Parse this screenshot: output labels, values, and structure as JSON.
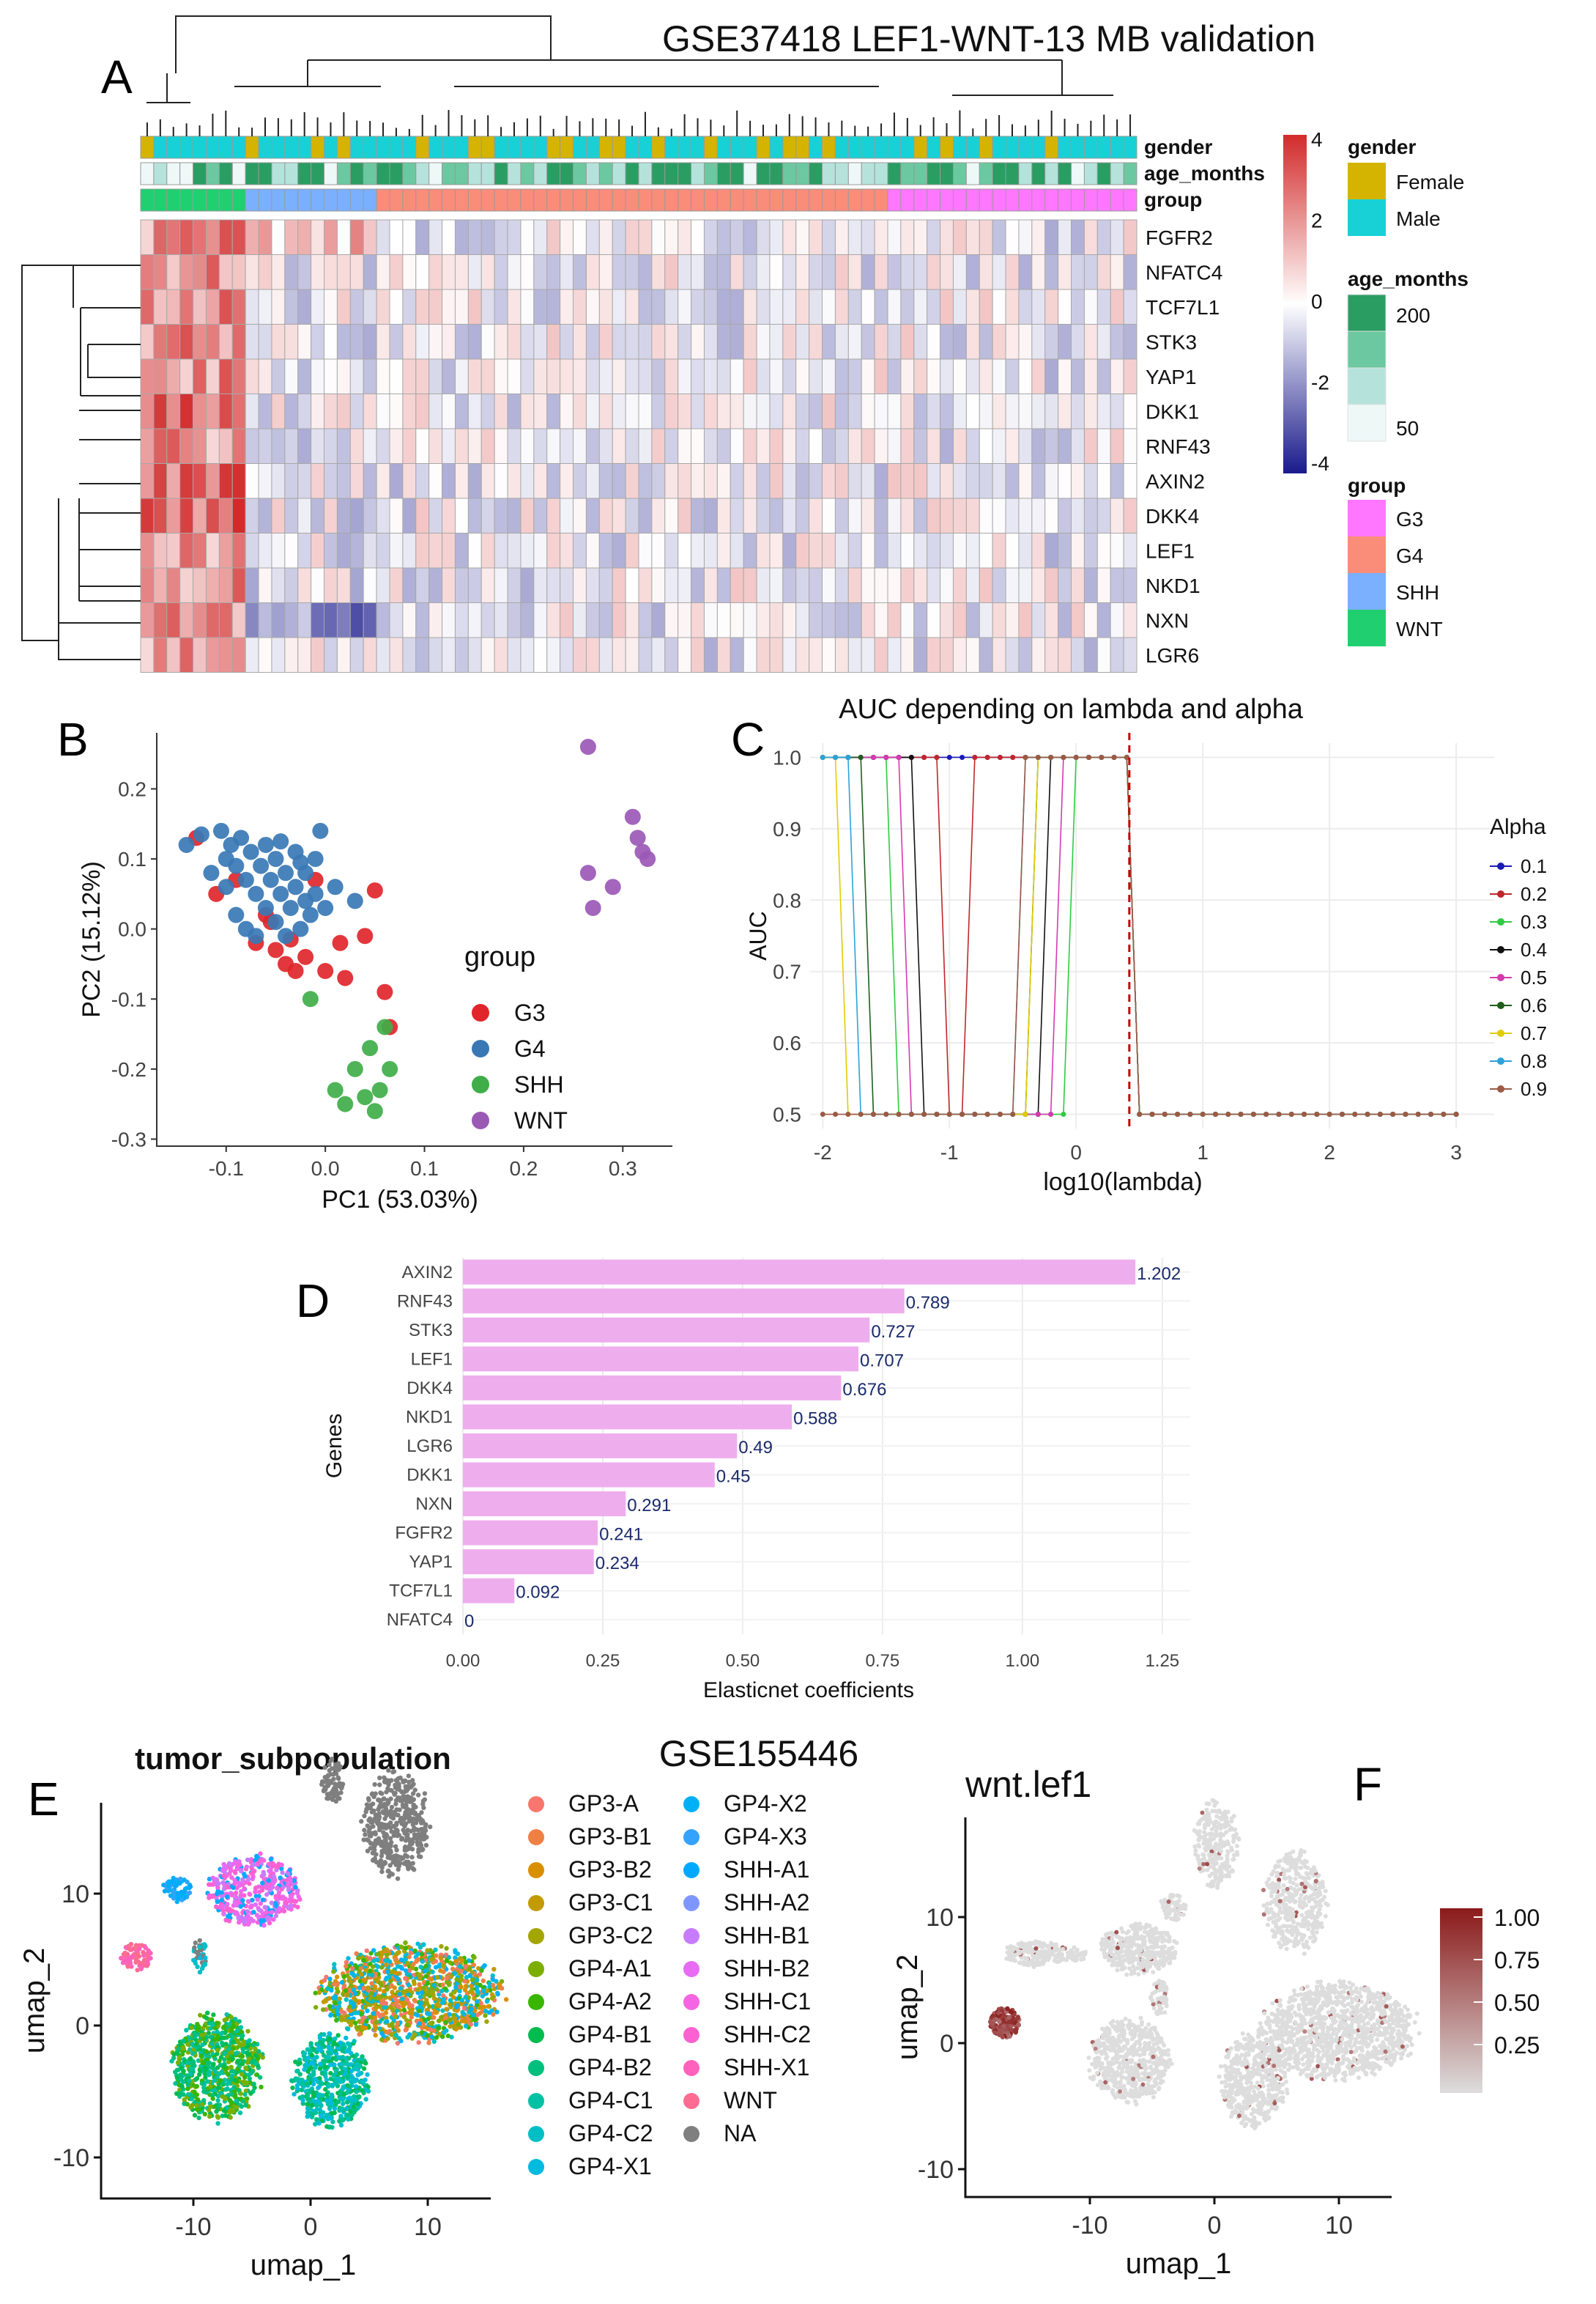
{
  "figure": {
    "panel_labels": [
      "A",
      "B",
      "C",
      "D",
      "E",
      "F"
    ]
  },
  "chart_data": [
    {
      "panel": "A",
      "type": "heatmap",
      "title": "GSE37418 LEF1-WNT-13 MB validation",
      "rows": [
        "FGFR2",
        "NFATC4",
        "TCF7L1",
        "STK3",
        "YAP1",
        "DKK1",
        "RNF43",
        "AXIN2",
        "DKK4",
        "LEF1",
        "NKD1",
        "NXN",
        "LGR6"
      ],
      "annotation_tracks": [
        "gender",
        "age_months",
        "group"
      ],
      "n_samples": 76,
      "sample_groups": [
        {
          "group": "WNT",
          "count": 8
        },
        {
          "group": "SHH",
          "count": 10
        },
        {
          "group": "G4",
          "count": 39
        },
        {
          "group": "G3",
          "count": 19
        }
      ],
      "scale_legend": {
        "ticks": [
          "4",
          "2",
          "0",
          "-2",
          "-4"
        ],
        "low": "#1a1a8c",
        "mid": "#ffffff",
        "high": "#d22b2b"
      },
      "legends": {
        "gender": {
          "title": "gender",
          "items": [
            {
              "label": "Female",
              "color": "#d4b400"
            },
            {
              "label": "Male",
              "color": "#17d1d6"
            }
          ]
        },
        "age_months": {
          "title": "age_months",
          "labels": [
            "200",
            "50"
          ],
          "colors": [
            "#2a9d63",
            "#6cc8a0",
            "#b5e3dc",
            "#edf8f7"
          ]
        },
        "group": {
          "title": "group",
          "items": [
            {
              "label": "G3",
              "color": "#ff77ff"
            },
            {
              "label": "G4",
              "color": "#fa8c7a"
            },
            {
              "label": "SHH",
              "color": "#7ab0ff"
            },
            {
              "label": "WNT",
              "color": "#20d070"
            }
          ]
        }
      }
    },
    {
      "panel": "B",
      "type": "scatter",
      "xlabel": "PC1 (53.03%)",
      "ylabel": "PC2 (15.12%)",
      "xlim": [
        -0.17,
        0.35
      ],
      "ylim": [
        -0.31,
        0.28
      ],
      "xticks": [
        -0.1,
        0.0,
        0.1,
        0.2,
        0.3
      ],
      "xtick_labels": [
        "-0.1",
        "0.0",
        "0.1",
        "0.2",
        "0.3"
      ],
      "yticks": [
        -0.3,
        -0.2,
        -0.1,
        0.0,
        0.1,
        0.2
      ],
      "ytick_labels": [
        "-0.3",
        "-0.2",
        "-0.1",
        "0.0",
        "0.1",
        "0.2"
      ],
      "legend_title": "group",
      "series": [
        {
          "name": "G3",
          "color": "#e0262b",
          "points": [
            [
              -0.13,
              0.13
            ],
            [
              -0.11,
              0.05
            ],
            [
              -0.09,
              0.07
            ],
            [
              -0.06,
              0.02
            ],
            [
              -0.05,
              -0.03
            ],
            [
              -0.04,
              -0.05
            ],
            [
              -0.03,
              -0.06
            ],
            [
              -0.02,
              -0.04
            ],
            [
              -0.01,
              0.07
            ],
            [
              0.0,
              -0.06
            ],
            [
              0.02,
              -0.07
            ],
            [
              0.05,
              0.055
            ],
            [
              0.04,
              -0.01
            ],
            [
              0.06,
              -0.09
            ],
            [
              0.065,
              -0.14
            ],
            [
              -0.07,
              -0.02
            ],
            [
              -0.055,
              0.01
            ],
            [
              -0.035,
              -0.015
            ],
            [
              0.015,
              -0.02
            ]
          ]
        },
        {
          "name": "G4",
          "color": "#3a78b5",
          "points": [
            [
              -0.14,
              0.12
            ],
            [
              -0.125,
              0.135
            ],
            [
              -0.105,
              0.14
            ],
            [
              -0.1,
              0.1
            ],
            [
              -0.095,
              0.12
            ],
            [
              -0.09,
              0.09
            ],
            [
              -0.085,
              0.13
            ],
            [
              -0.08,
              0.07
            ],
            [
              -0.075,
              0.11
            ],
            [
              -0.07,
              0.05
            ],
            [
              -0.065,
              0.09
            ],
            [
              -0.06,
              0.12
            ],
            [
              -0.06,
              0.03
            ],
            [
              -0.055,
              0.07
            ],
            [
              -0.05,
              0.1
            ],
            [
              -0.05,
              0.01
            ],
            [
              -0.045,
              0.05
            ],
            [
              -0.04,
              0.08
            ],
            [
              -0.04,
              -0.01
            ],
            [
              -0.035,
              0.03
            ],
            [
              -0.03,
              0.06
            ],
            [
              -0.03,
              0.11
            ],
            [
              -0.025,
              0.0
            ],
            [
              -0.02,
              0.04
            ],
            [
              -0.02,
              0.08
            ],
            [
              -0.015,
              0.02
            ],
            [
              -0.01,
              0.05
            ],
            [
              -0.01,
              0.1
            ],
            [
              -0.005,
              0.14
            ],
            [
              0.0,
              0.03
            ],
            [
              0.01,
              0.06
            ],
            [
              0.03,
              0.04
            ],
            [
              -0.09,
              0.02
            ],
            [
              -0.08,
              0.0
            ],
            [
              -0.07,
              -0.01
            ],
            [
              -0.1,
              0.06
            ],
            [
              -0.115,
              0.08
            ],
            [
              -0.045,
              0.125
            ],
            [
              -0.025,
              0.095
            ]
          ]
        },
        {
          "name": "SHH",
          "color": "#3fae49",
          "points": [
            [
              -0.015,
              -0.1
            ],
            [
              0.03,
              -0.2
            ],
            [
              0.04,
              -0.24
            ],
            [
              0.045,
              -0.17
            ],
            [
              0.05,
              -0.26
            ],
            [
              0.055,
              -0.23
            ],
            [
              0.06,
              -0.14
            ],
            [
              0.065,
              -0.2
            ],
            [
              0.02,
              -0.25
            ],
            [
              0.01,
              -0.23
            ]
          ]
        },
        {
          "name": "WNT",
          "color": "#9b59b6",
          "points": [
            [
              0.265,
              0.26
            ],
            [
              0.265,
              0.08
            ],
            [
              0.27,
              0.03
            ],
            [
              0.29,
              0.06
            ],
            [
              0.31,
              0.16
            ],
            [
              0.315,
              0.13
            ],
            [
              0.32,
              0.11
            ],
            [
              0.325,
              0.1
            ]
          ]
        }
      ]
    },
    {
      "panel": "C",
      "type": "line",
      "title": "AUC depending on lambda and alpha",
      "xlabel": "log10(lambda)",
      "ylabel": "AUC",
      "xlim": [
        -2.1,
        3.3
      ],
      "ylim": [
        0.48,
        1.02
      ],
      "xticks": [
        -2,
        -1,
        0,
        1,
        2,
        3
      ],
      "xtick_labels": [
        "-2",
        "-1",
        "0",
        "1",
        "2",
        "3"
      ],
      "yticks": [
        0.5,
        0.6,
        0.7,
        0.8,
        0.9,
        1.0
      ],
      "ytick_labels": [
        "0.5",
        "0.6",
        "0.7",
        "0.8",
        "0.9",
        "1.0"
      ],
      "cutoff_log10_lambda": 0.42,
      "legend_title": "Alpha",
      "series": [
        {
          "name": "0.1",
          "color": "#1a1ab5",
          "drop_from": 0.45,
          "drop_to": 0.5
        },
        {
          "name": "0.2",
          "color": "#c0262b",
          "drop_from": -1.0,
          "drop_to": -0.8
        },
        {
          "name": "0.3",
          "color": "#2ecc40",
          "drop_from": -1.4,
          "drop_to": -0.05
        },
        {
          "name": "0.4",
          "color": "#111111",
          "drop_from": -1.2,
          "drop_to": -0.25
        },
        {
          "name": "0.5",
          "color": "#d63ab0",
          "drop_from": -1.3,
          "drop_to": -0.15
        },
        {
          "name": "0.6",
          "color": "#1e5e1e",
          "drop_from": -1.65,
          "drop_to": -0.3
        },
        {
          "name": "0.7",
          "color": "#e0cc00",
          "drop_from": -1.8,
          "drop_to": -0.35
        },
        {
          "name": "0.8",
          "color": "#29a3d9",
          "drop_from": -1.7,
          "drop_to": -0.4
        },
        {
          "name": "0.9",
          "color": "#9c5a45",
          "drop_from": -2.0,
          "drop_to": -0.45
        }
      ]
    },
    {
      "panel": "D",
      "type": "bar",
      "orientation": "horizontal",
      "xlabel": "Elasticnet coefficients",
      "ylabel": "Genes",
      "xlim": [
        0,
        1.3
      ],
      "xticks": [
        0.0,
        0.25,
        0.5,
        0.75,
        1.0,
        1.25
      ],
      "xtick_labels": [
        "0.00",
        "0.25",
        "0.50",
        "0.75",
        "1.00",
        "1.25"
      ],
      "bar_color": "#eeaeee",
      "categories": [
        "AXIN2",
        "RNF43",
        "STK3",
        "LEF1",
        "DKK4",
        "NKD1",
        "LGR6",
        "DKK1",
        "NXN",
        "FGFR2",
        "YAP1",
        "TCF7L1",
        "NFATC4"
      ],
      "values": [
        1.202,
        0.789,
        0.727,
        0.707,
        0.676,
        0.588,
        0.49,
        0.45,
        0.291,
        0.241,
        0.234,
        0.092,
        0
      ],
      "value_labels": [
        "1.202",
        "0.789",
        "0.727",
        "0.707",
        "0.676",
        "0.588",
        "0.49",
        "0.45",
        "0.291",
        "0.241",
        "0.234",
        "0.092",
        "0"
      ]
    },
    {
      "panel": "E",
      "type": "scatter",
      "title": "tumor_subpopulation",
      "xlabel": "umap_1",
      "ylabel": "umap_2",
      "xticks": [
        -10,
        0,
        10
      ],
      "xtick_labels": [
        "-10",
        "0",
        "10"
      ],
      "yticks": [
        -10,
        0,
        10
      ],
      "ytick_labels": [
        "-10",
        "0",
        "10"
      ],
      "legend": [
        {
          "label": "GP3-A",
          "color": "#f8766d"
        },
        {
          "label": "GP3-B1",
          "color": "#ee8044"
        },
        {
          "label": "GP3-B2",
          "color": "#d89000"
        },
        {
          "label": "GP3-C1",
          "color": "#c39a00"
        },
        {
          "label": "GP3-C2",
          "color": "#a3a500"
        },
        {
          "label": "GP4-A1",
          "color": "#7cae00"
        },
        {
          "label": "GP4-A2",
          "color": "#39b600"
        },
        {
          "label": "GP4-B1",
          "color": "#00bb4e"
        },
        {
          "label": "GP4-B2",
          "color": "#00bf7d"
        },
        {
          "label": "GP4-C1",
          "color": "#00c1a3"
        },
        {
          "label": "GP4-C2",
          "color": "#00bfc4"
        },
        {
          "label": "GP4-X1",
          "color": "#00bae0"
        },
        {
          "label": "GP4-X2",
          "color": "#00b0f6"
        },
        {
          "label": "GP4-X3",
          "color": "#35a2ff"
        },
        {
          "label": "SHH-A1",
          "color": "#00a9ff"
        },
        {
          "label": "SHH-A2",
          "color": "#7f96ff"
        },
        {
          "label": "SHH-B1",
          "color": "#c77cff"
        },
        {
          "label": "SHH-B2",
          "color": "#e76bf3"
        },
        {
          "label": "SHH-C1",
          "color": "#f564e3"
        },
        {
          "label": "SHH-C2",
          "color": "#fd61d1"
        },
        {
          "label": "SHH-X1",
          "color": "#ff62bc"
        },
        {
          "label": "WNT",
          "color": "#ff6c91"
        },
        {
          "label": "NA",
          "color": "#7f7f7f"
        }
      ]
    },
    {
      "panel": "E/F",
      "type": "text",
      "title": "GSE155446"
    },
    {
      "panel": "F",
      "type": "scatter",
      "title": "wnt.lef1",
      "xlabel": "umap_1",
      "ylabel": "umap_2",
      "xticks": [
        -10,
        0,
        10
      ],
      "xtick_labels": [
        "-10",
        "0",
        "10"
      ],
      "yticks": [
        -10,
        0,
        10
      ],
      "ytick_labels": [
        "-10",
        "0",
        "10"
      ],
      "colorbar": {
        "ticks": [
          "1.00",
          "0.75",
          "0.50",
          "0.25"
        ],
        "low": "#dddddd",
        "high": "#8b1a1a"
      }
    }
  ]
}
